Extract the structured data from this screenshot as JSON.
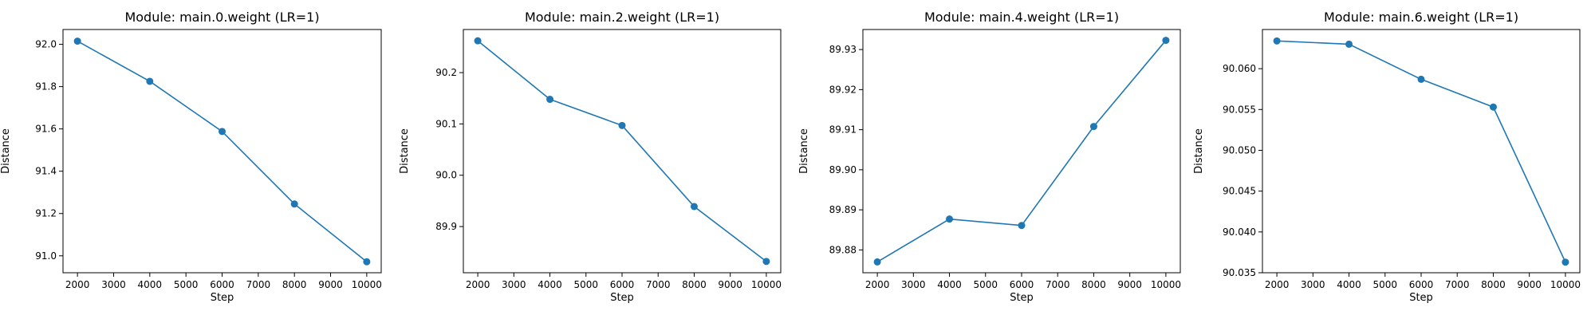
{
  "chart_data": [
    {
      "type": "line",
      "title": "Module: main.0.weight (LR=1)",
      "xlabel": "Step",
      "ylabel": "Distance",
      "x": [
        2000,
        4000,
        6000,
        8000,
        10000
      ],
      "series": [
        {
          "values": [
            92.015,
            91.825,
            91.588,
            91.245,
            90.972
          ]
        }
      ],
      "xticks": [
        2000,
        3000,
        4000,
        5000,
        6000,
        7000,
        8000,
        9000,
        10000
      ],
      "yticks": [
        91.0,
        91.2,
        91.4,
        91.6,
        91.8,
        92.0
      ],
      "ytick_labels": [
        "91.0",
        "91.2",
        "91.4",
        "91.6",
        "91.8",
        "92.0"
      ],
      "xlim": [
        1600,
        10400
      ],
      "ylim": [
        90.92,
        92.07
      ],
      "grid": false,
      "color": "#1f77b4"
    },
    {
      "type": "line",
      "title": "Module: main.2.weight (LR=1)",
      "xlabel": "Step",
      "ylabel": "Distance",
      "x": [
        2000,
        4000,
        6000,
        8000,
        10000
      ],
      "series": [
        {
          "values": [
            90.262,
            90.148,
            90.097,
            89.939,
            89.832
          ]
        }
      ],
      "xticks": [
        2000,
        3000,
        4000,
        5000,
        6000,
        7000,
        8000,
        9000,
        10000
      ],
      "yticks": [
        89.9,
        90.0,
        90.1,
        90.2
      ],
      "ytick_labels": [
        "89.9",
        "90.0",
        "90.1",
        "90.2"
      ],
      "xlim": [
        1600,
        10400
      ],
      "ylim": [
        89.81,
        90.284
      ],
      "grid": false,
      "color": "#1f77b4"
    },
    {
      "type": "line",
      "title": "Module: main.4.weight (LR=1)",
      "xlabel": "Step",
      "ylabel": "Distance",
      "x": [
        2000,
        4000,
        6000,
        8000,
        10000
      ],
      "series": [
        {
          "values": [
            89.877,
            89.8877,
            89.8861,
            89.9108,
            89.9323
          ]
        }
      ],
      "xticks": [
        2000,
        3000,
        4000,
        5000,
        6000,
        7000,
        8000,
        9000,
        10000
      ],
      "yticks": [
        89.88,
        89.89,
        89.9,
        89.91,
        89.92,
        89.93
      ],
      "ytick_labels": [
        "89.88",
        "89.89",
        "89.90",
        "89.91",
        "89.92",
        "89.93"
      ],
      "xlim": [
        1600,
        10400
      ],
      "ylim": [
        89.8743,
        89.935
      ],
      "grid": false,
      "color": "#1f77b4"
    },
    {
      "type": "line",
      "title": "Module: main.6.weight (LR=1)",
      "xlabel": "Step",
      "ylabel": "Distance",
      "x": [
        2000,
        4000,
        6000,
        8000,
        10000
      ],
      "series": [
        {
          "values": [
            90.0634,
            90.063,
            90.0587,
            90.0553,
            90.0363
          ]
        }
      ],
      "xticks": [
        2000,
        3000,
        4000,
        5000,
        6000,
        7000,
        8000,
        9000,
        10000
      ],
      "yticks": [
        90.035,
        90.04,
        90.045,
        90.05,
        90.055,
        90.06
      ],
      "ytick_labels": [
        "90.035",
        "90.040",
        "90.045",
        "90.050",
        "90.055",
        "90.060"
      ],
      "xlim": [
        1600,
        10400
      ],
      "ylim": [
        90.035,
        90.0648
      ],
      "grid": false,
      "color": "#1f77b4"
    }
  ]
}
